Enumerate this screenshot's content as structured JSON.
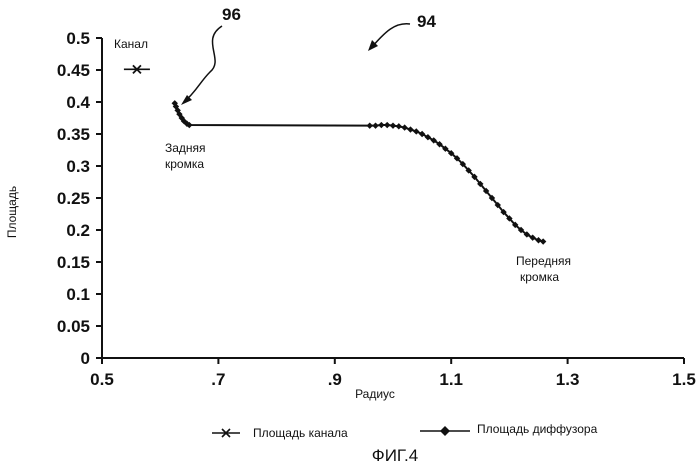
{
  "chart_data": {
    "type": "line",
    "xlabel": "Радиус",
    "ylabel": "Площадь",
    "xlim": [
      0.5,
      1.5
    ],
    "ylim": [
      0,
      0.5
    ],
    "x_ticks": [
      "0.5",
      ".7",
      ".9",
      "1.1",
      "1.3",
      "1.5"
    ],
    "y_ticks": [
      "0",
      "0.05",
      "0.1",
      "0.15",
      "0.2",
      "0.25",
      "0.3",
      "0.35",
      "0.4",
      "0.45",
      "0.5"
    ],
    "grid": false,
    "legend_position": "bottom",
    "series": [
      {
        "name": "Площадь канала",
        "marker": "x",
        "points": [
          [
            0.56,
            0.451
          ]
        ]
      },
      {
        "name": "Площадь диффузора",
        "marker": "diamond",
        "points": [
          [
            0.625,
            0.398
          ],
          [
            0.627,
            0.393
          ],
          [
            0.63,
            0.387
          ],
          [
            0.633,
            0.381
          ],
          [
            0.637,
            0.375
          ],
          [
            0.641,
            0.37
          ],
          [
            0.646,
            0.366
          ],
          [
            0.65,
            0.364
          ],
          [
            0.96,
            0.363
          ],
          [
            0.97,
            0.363
          ],
          [
            0.98,
            0.364
          ],
          [
            0.99,
            0.364
          ],
          [
            1.0,
            0.363
          ],
          [
            1.01,
            0.362
          ],
          [
            1.02,
            0.36
          ],
          [
            1.03,
            0.357
          ],
          [
            1.04,
            0.354
          ],
          [
            1.05,
            0.35
          ],
          [
            1.06,
            0.345
          ],
          [
            1.07,
            0.34
          ],
          [
            1.08,
            0.334
          ],
          [
            1.09,
            0.327
          ],
          [
            1.1,
            0.32
          ],
          [
            1.11,
            0.312
          ],
          [
            1.12,
            0.303
          ],
          [
            1.13,
            0.293
          ],
          [
            1.14,
            0.283
          ],
          [
            1.15,
            0.272
          ],
          [
            1.16,
            0.261
          ],
          [
            1.17,
            0.25
          ],
          [
            1.18,
            0.239
          ],
          [
            1.19,
            0.228
          ],
          [
            1.2,
            0.218
          ],
          [
            1.21,
            0.208
          ],
          [
            1.22,
            0.2
          ],
          [
            1.23,
            0.193
          ],
          [
            1.24,
            0.188
          ],
          [
            1.25,
            0.184
          ],
          [
            1.258,
            0.182
          ]
        ]
      }
    ],
    "annotations": {
      "channel": "Канал",
      "trailing_edge_1": "Задняя",
      "trailing_edge_2": "кромка",
      "leading_edge_1": "Передняя",
      "leading_edge_2": "кромка",
      "ref_96": "96",
      "ref_94": "94"
    },
    "figure_caption": "ФИГ.4"
  }
}
